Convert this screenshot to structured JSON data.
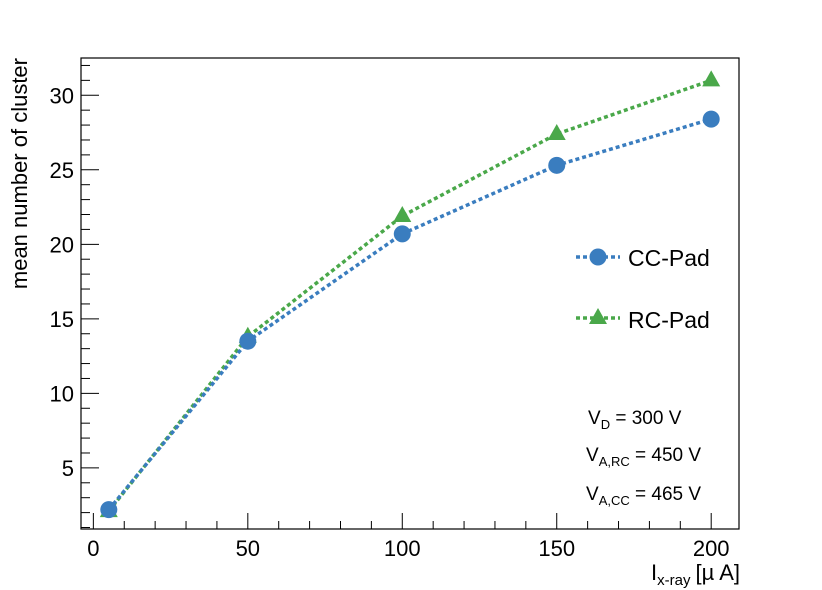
{
  "chart_data": {
    "type": "line",
    "title": "",
    "xlabel": {
      "main": "I",
      "sub": "x-ray",
      "unit": "[µ A]"
    },
    "ylabel": "mean number of cluster",
    "xlim": [
      -4,
      209
    ],
    "ylim": [
      0.9,
      32.5
    ],
    "x_major_ticks": [
      0,
      50,
      100,
      150,
      200
    ],
    "x_tick_labels": [
      "0",
      "50",
      "100",
      "150",
      "200"
    ],
    "y_major_ticks": [
      5,
      10,
      15,
      20,
      25,
      30
    ],
    "y_tick_labels": [
      "5",
      "10",
      "15",
      "20",
      "25",
      "30"
    ],
    "series": [
      {
        "name": "CC-Pad",
        "marker": "circle",
        "color": "#3a7dbf",
        "x": [
          5,
          50,
          100,
          150,
          200
        ],
        "values": [
          2.2,
          13.5,
          20.7,
          25.3,
          28.4
        ]
      },
      {
        "name": "RC-Pad",
        "marker": "triangle",
        "color": "#4aa84a",
        "x": [
          5,
          50,
          100,
          150,
          200
        ],
        "values": [
          2.1,
          13.8,
          21.9,
          27.4,
          31.0
        ]
      }
    ],
    "legend": [
      "CC-Pad",
      "RC-Pad"
    ],
    "legend_position": "right",
    "annotations": [
      {
        "main": "V",
        "sub": "D",
        "rest": " = 300 V"
      },
      {
        "main": "V",
        "sub": "A,RC",
        "rest": " = 450 V"
      },
      {
        "main": "V",
        "sub": "A,CC",
        "rest": " = 465 V"
      }
    ],
    "grid": false
  }
}
